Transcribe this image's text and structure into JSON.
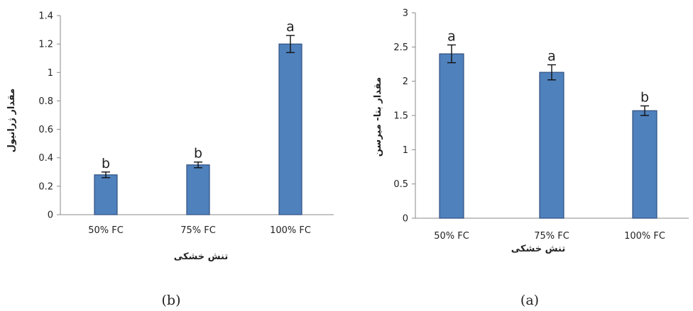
{
  "chart_data": [
    {
      "type": "bar",
      "panel_label": "(b)",
      "categories": [
        "50% FC",
        "75% FC",
        "100% FC"
      ],
      "values": [
        0.28,
        0.35,
        1.2
      ],
      "errors": [
        0.02,
        0.02,
        0.06
      ],
      "significance": [
        "b",
        "b",
        "a"
      ],
      "xlabel": "تنش خشکی",
      "ylabel": "مقدار ژرانیول",
      "ylim": [
        0,
        1.4
      ],
      "yticks": [
        0,
        0.2,
        0.4,
        0.6,
        0.8,
        1,
        1.2,
        1.4
      ],
      "ytick_labels": [
        "0",
        "0.2",
        "0.4",
        "0.6",
        "0.8",
        "1",
        "1.2",
        "1.4"
      ],
      "grid": false,
      "bar_color": "#4f81bd",
      "bar_edge_color": "#2f4f7f"
    },
    {
      "type": "bar",
      "panel_label": "(a)",
      "categories": [
        "50% FC",
        "75% FC",
        "100% FC"
      ],
      "values": [
        2.4,
        2.13,
        1.57
      ],
      "errors": [
        0.13,
        0.11,
        0.07
      ],
      "significance": [
        "a",
        "a",
        "b"
      ],
      "xlabel": "تنش خشکی",
      "ylabel": "مقدار بتا- میرسن",
      "ylim": [
        0,
        3
      ],
      "yticks": [
        0,
        0.5,
        1,
        1.5,
        2,
        2.5,
        3
      ],
      "ytick_labels": [
        "0",
        "0.5",
        "1",
        "1.5",
        "2",
        "2.5",
        "3"
      ],
      "grid": false,
      "bar_color": "#4f81bd",
      "bar_edge_color": "#2f4f7f"
    }
  ]
}
